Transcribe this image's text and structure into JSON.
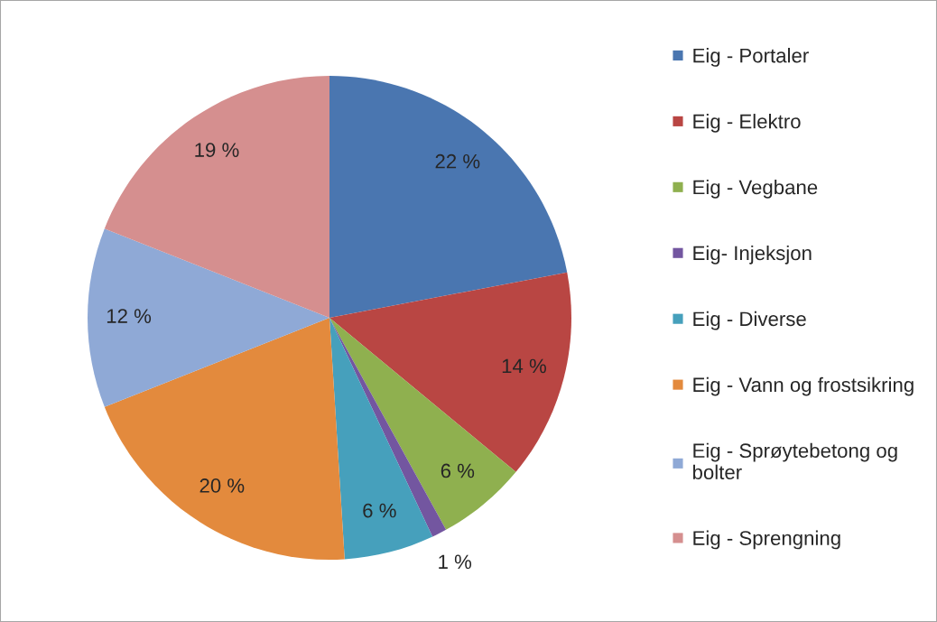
{
  "chart_data": {
    "type": "pie",
    "categories": [
      "Eig - Portaler",
      "Eig - Elektro",
      "Eig - Vegbane",
      "Eig- Injeksjon",
      "Eig - Diverse",
      "Eig - Vann og frostsikring",
      "Eig - Sprøytebetong og bolter",
      "Eig - Sprengning"
    ],
    "values": [
      22,
      14,
      6,
      1,
      6,
      20,
      12,
      19
    ],
    "colors": [
      "#4a76b0",
      "#b94643",
      "#8fb04f",
      "#7356a0",
      "#46a0bc",
      "#e38a3d",
      "#8fa9d6",
      "#d58f8f"
    ],
    "value_labels": [
      "22 %",
      "14 %",
      "6 %",
      "1 %",
      "6 %",
      "20 %",
      "12 %",
      "19 %"
    ],
    "legend": "right"
  }
}
